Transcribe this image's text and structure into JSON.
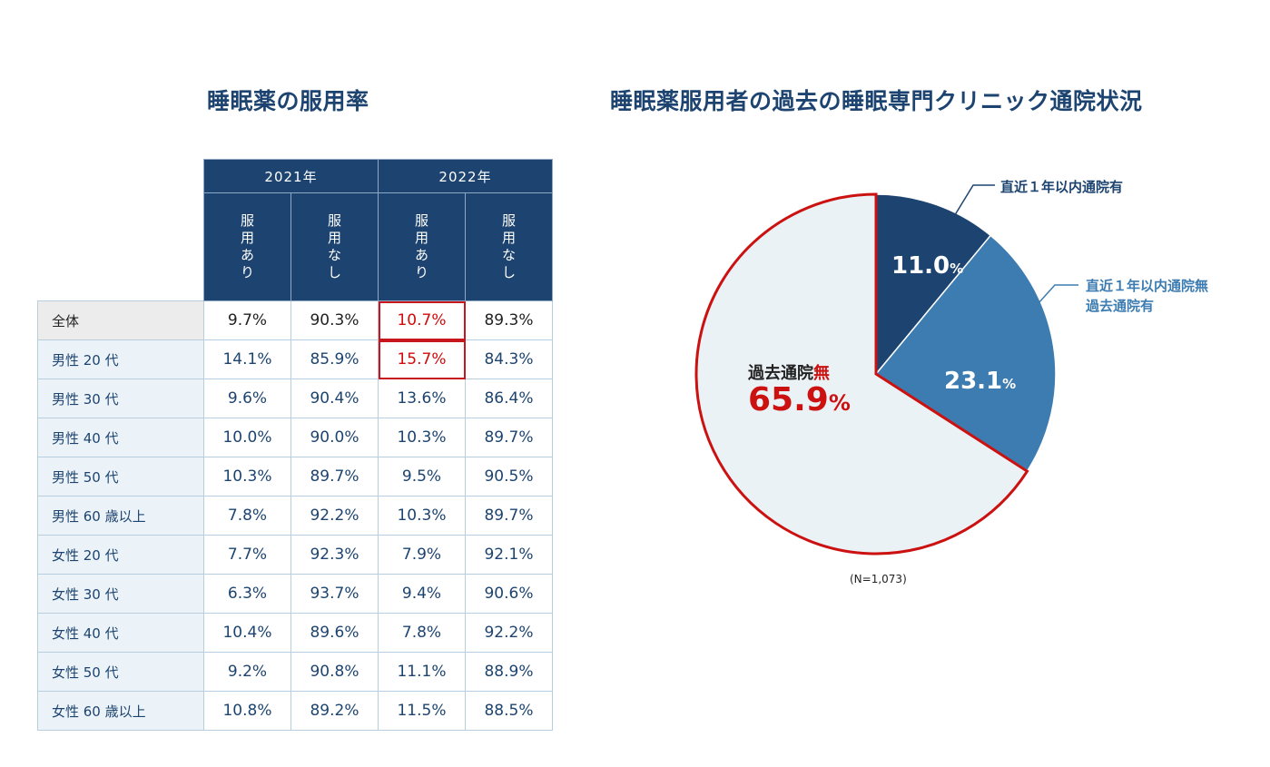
{
  "table": {
    "title": "睡眠薬の服用率",
    "years": [
      "2021年",
      "2022年"
    ],
    "usage_headers": [
      "服用あり",
      "服用なし",
      "服用あり",
      "服用なし"
    ],
    "rows": [
      {
        "label": "全体",
        "values": [
          "9.7%",
          "90.3%",
          "10.7%",
          "89.3%"
        ]
      },
      {
        "label": "男性 20 代",
        "values": [
          "14.1%",
          "85.9%",
          "15.7%",
          "84.3%"
        ]
      },
      {
        "label": "男性 30 代",
        "values": [
          "9.6%",
          "90.4%",
          "13.6%",
          "86.4%"
        ]
      },
      {
        "label": "男性 40 代",
        "values": [
          "10.0%",
          "90.0%",
          "10.3%",
          "89.7%"
        ]
      },
      {
        "label": "男性 50 代",
        "values": [
          "10.3%",
          "89.7%",
          "9.5%",
          "90.5%"
        ]
      },
      {
        "label": "男性 60 歳以上",
        "values": [
          "7.8%",
          "92.2%",
          "10.3%",
          "89.7%"
        ]
      },
      {
        "label": "女性 20 代",
        "values": [
          "7.7%",
          "92.3%",
          "7.9%",
          "92.1%"
        ]
      },
      {
        "label": "女性 30 代",
        "values": [
          "6.3%",
          "93.7%",
          "9.4%",
          "90.6%"
        ]
      },
      {
        "label": "女性 40 代",
        "values": [
          "10.4%",
          "89.6%",
          "7.8%",
          "92.2%"
        ]
      },
      {
        "label": "女性 50 代",
        "values": [
          "9.2%",
          "90.8%",
          "11.1%",
          "88.9%"
        ]
      },
      {
        "label": "女性 60 歳以上",
        "values": [
          "10.8%",
          "89.2%",
          "11.5%",
          "88.5%"
        ]
      }
    ]
  },
  "chart_data": {
    "type": "pie",
    "title": "睡眠薬服用者の過去の睡眠専門クリニック通院状況",
    "note": "(N=1,073)",
    "slices": [
      {
        "label": "直近１年以内通院有",
        "value": 11.0,
        "value_text": "11.0",
        "color": "#1d4470"
      },
      {
        "label_lines": [
          "直近１年以内通院無",
          "過去通院有"
        ],
        "value": 23.1,
        "value_text": "23.1",
        "color": "#3d7cb1"
      },
      {
        "label_prefix": "過去通院",
        "label_emphasis": "無",
        "value": 65.9,
        "value_text": "65.9",
        "color": "#ebf2f6",
        "border": "#cc1111"
      }
    ],
    "percent_sign": "%"
  }
}
